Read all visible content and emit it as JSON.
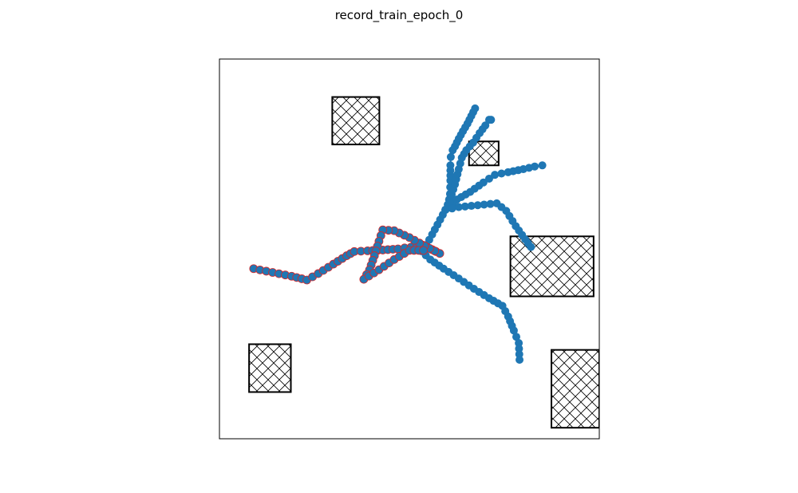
{
  "chart_data": {
    "type": "scatter",
    "title": "record_train_epoch_0",
    "xlabel": "",
    "ylabel": "",
    "xlim": [
      0,
      10
    ],
    "ylim": [
      0,
      10
    ],
    "ticks": "none",
    "grid": false,
    "obstacles": [
      {
        "x0": 2.97,
        "y0": 7.75,
        "x1": 4.21,
        "y1": 9.0
      },
      {
        "x0": 6.57,
        "y0": 7.2,
        "x1": 7.35,
        "y1": 7.83
      },
      {
        "x0": 7.66,
        "y0": 3.75,
        "x1": 9.85,
        "y1": 5.33
      },
      {
        "x0": 0.78,
        "y0": 1.23,
        "x1": 1.88,
        "y1": 2.49
      },
      {
        "x0": 8.74,
        "y0": 0.29,
        "x1": 10.0,
        "y1": 2.34
      }
    ],
    "series": [
      {
        "color": "#1f77b4",
        "points": [
          [
            5.37,
            4.96
          ],
          [
            5.6,
            5.38
          ],
          [
            5.81,
            5.77
          ],
          [
            5.95,
            6.03
          ],
          [
            6.02,
            6.15
          ],
          [
            6.07,
            6.45
          ],
          [
            6.08,
            6.8
          ],
          [
            6.08,
            7.2
          ],
          [
            6.09,
            7.42
          ],
          [
            6.14,
            7.6
          ],
          [
            6.2,
            7.7
          ],
          [
            6.3,
            7.9
          ],
          [
            6.41,
            8.1
          ],
          [
            6.53,
            8.3
          ],
          [
            6.63,
            8.5
          ],
          [
            6.73,
            8.7
          ]
        ]
      },
      {
        "color": "#1f77b4",
        "points": [
          [
            5.95,
            6.03
          ],
          [
            6.07,
            6.3
          ],
          [
            6.2,
            6.7
          ],
          [
            6.3,
            7.1
          ],
          [
            6.38,
            7.4
          ],
          [
            6.5,
            7.6
          ],
          [
            6.68,
            7.8
          ],
          [
            6.85,
            8.05
          ],
          [
            7.0,
            8.25
          ],
          [
            7.1,
            8.4
          ],
          [
            7.15,
            8.4
          ]
        ]
      },
      {
        "color": "#1f77b4",
        "points": [
          [
            5.95,
            6.03
          ],
          [
            6.25,
            6.3
          ],
          [
            6.6,
            6.5
          ],
          [
            6.95,
            6.75
          ],
          [
            7.25,
            6.95
          ],
          [
            7.6,
            7.02
          ],
          [
            8.0,
            7.1
          ],
          [
            8.3,
            7.17
          ],
          [
            8.5,
            7.2
          ]
        ]
      },
      {
        "color": "#1f77b4",
        "points": [
          [
            5.95,
            6.03
          ],
          [
            6.3,
            6.1
          ],
          [
            6.8,
            6.15
          ],
          [
            7.3,
            6.2
          ],
          [
            7.55,
            6.0
          ],
          [
            7.8,
            5.6
          ],
          [
            8.05,
            5.25
          ],
          [
            8.2,
            5.05
          ]
        ]
      },
      {
        "color": "#1f77b4",
        "points": [
          [
            5.2,
            5.05
          ],
          [
            5.55,
            4.72
          ],
          [
            5.9,
            4.48
          ],
          [
            6.3,
            4.22
          ],
          [
            6.7,
            3.95
          ],
          [
            7.1,
            3.7
          ],
          [
            7.45,
            3.5
          ],
          [
            7.6,
            3.22
          ],
          [
            7.75,
            2.85
          ],
          [
            7.88,
            2.52
          ],
          [
            7.9,
            2.08
          ]
        ]
      },
      {
        "color": "#1f77b4",
        "outline": "#d62728",
        "points": [
          [
            0.9,
            4.48
          ],
          [
            1.4,
            4.38
          ],
          [
            1.9,
            4.28
          ],
          [
            2.3,
            4.18
          ],
          [
            2.6,
            4.35
          ],
          [
            3.0,
            4.6
          ],
          [
            3.35,
            4.82
          ],
          [
            3.55,
            4.93
          ],
          [
            3.9,
            4.95
          ],
          [
            4.3,
            4.97
          ],
          [
            4.7,
            5.0
          ],
          [
            5.05,
            5.05
          ],
          [
            5.35,
            5.1
          ],
          [
            5.6,
            4.98
          ],
          [
            5.8,
            4.88
          ],
          [
            5.4,
            5.08
          ],
          [
            5.0,
            5.3
          ],
          [
            4.6,
            5.48
          ],
          [
            4.3,
            5.5
          ],
          [
            4.2,
            5.2
          ],
          [
            4.08,
            4.82
          ],
          [
            3.95,
            4.45
          ],
          [
            3.8,
            4.2
          ],
          [
            4.2,
            4.45
          ],
          [
            4.6,
            4.72
          ],
          [
            5.0,
            4.96
          ],
          [
            5.37,
            4.96
          ]
        ]
      }
    ]
  }
}
